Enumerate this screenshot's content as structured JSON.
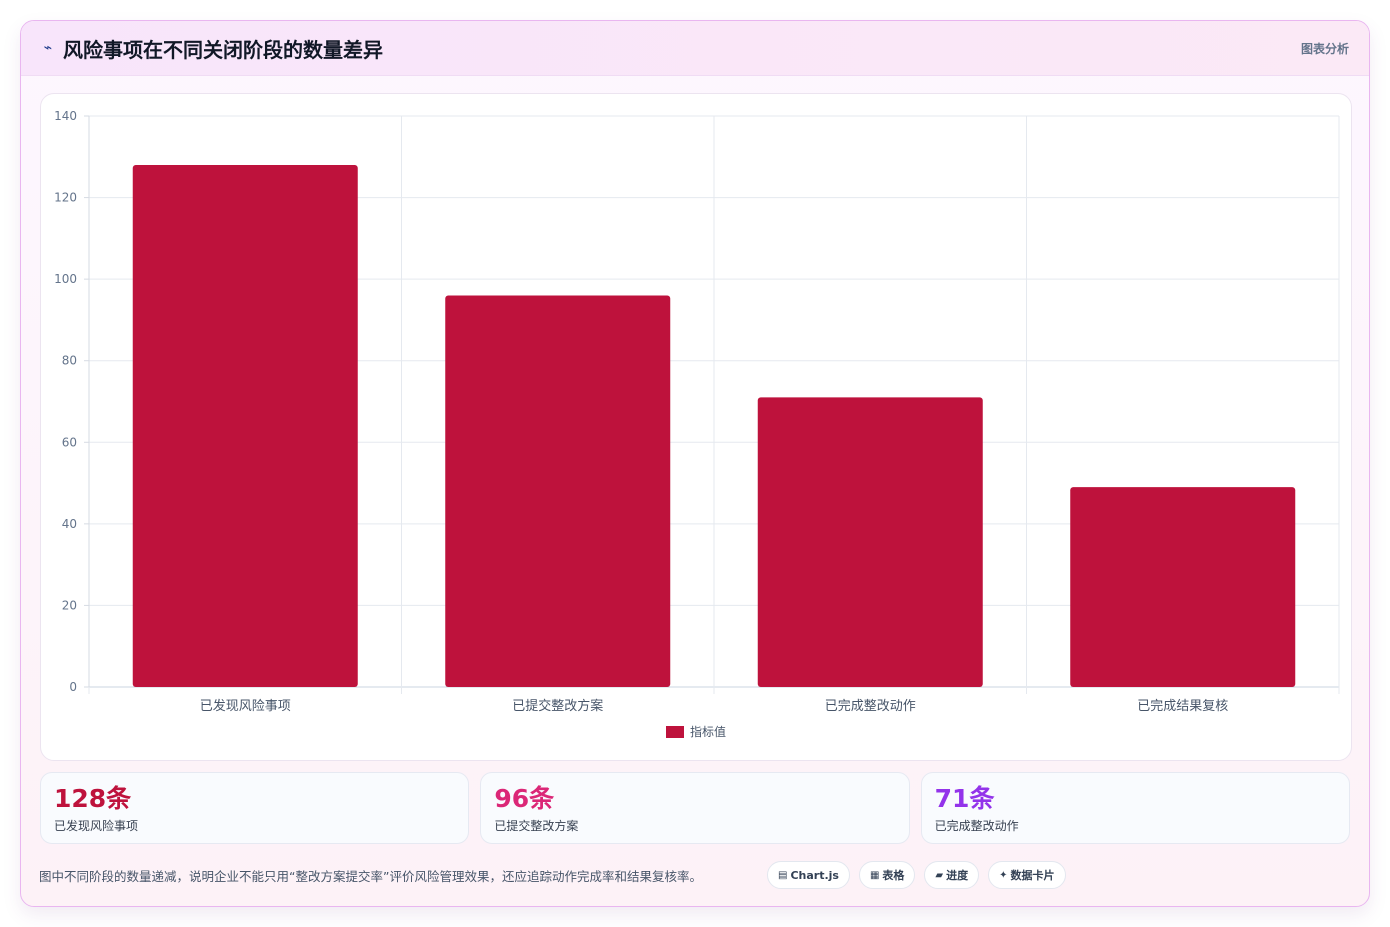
{
  "header": {
    "title": "风险事项在不同关闭阶段的数量差异",
    "title_icon": "trend-icon",
    "right_label": "图表分析"
  },
  "chart_data": {
    "type": "bar",
    "categories": [
      "已发现风险事项",
      "已提交整改方案",
      "已完成整改动作",
      "已完成结果复核"
    ],
    "series": [
      {
        "name": "指标值",
        "values": [
          128,
          96,
          71,
          49
        ],
        "color": "#be123c"
      }
    ],
    "ylim": [
      0,
      140
    ],
    "yticks": [
      0,
      20,
      40,
      60,
      80,
      100,
      120,
      140
    ],
    "grid": true,
    "legend": "bottom"
  },
  "stats": [
    {
      "value": "128条",
      "label": "已发现风险事项",
      "color": "#be123c"
    },
    {
      "value": "96条",
      "label": "已提交整改方案",
      "color": "#db2777"
    },
    {
      "value": "71条",
      "label": "已完成整改动作",
      "color": "#9333ea"
    }
  ],
  "footer": {
    "note": "图中不同阶段的数量递减，说明企业不能只用“整改方案提交率”评价风险管理效果，还应追踪动作完成率和结果复核率。",
    "chips": [
      {
        "icon": "▤",
        "label": "Chart.js"
      },
      {
        "icon": "▦",
        "label": "表格"
      },
      {
        "icon": "▰",
        "label": "进度"
      },
      {
        "icon": "✦",
        "label": "数据卡片"
      }
    ]
  }
}
